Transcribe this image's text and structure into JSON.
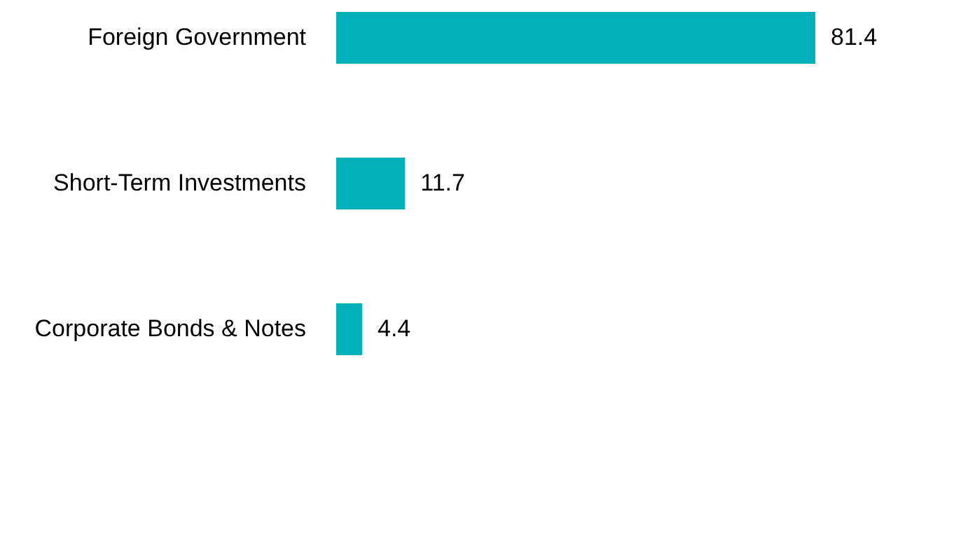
{
  "chart_data": {
    "type": "bar",
    "orientation": "horizontal",
    "categories": [
      "Foreign Government",
      "Short-Term Investments",
      "Corporate Bonds & Notes"
    ],
    "values": [
      81.4,
      11.7,
      4.4
    ],
    "color": "#00b0b9",
    "data_labels": true
  }
}
